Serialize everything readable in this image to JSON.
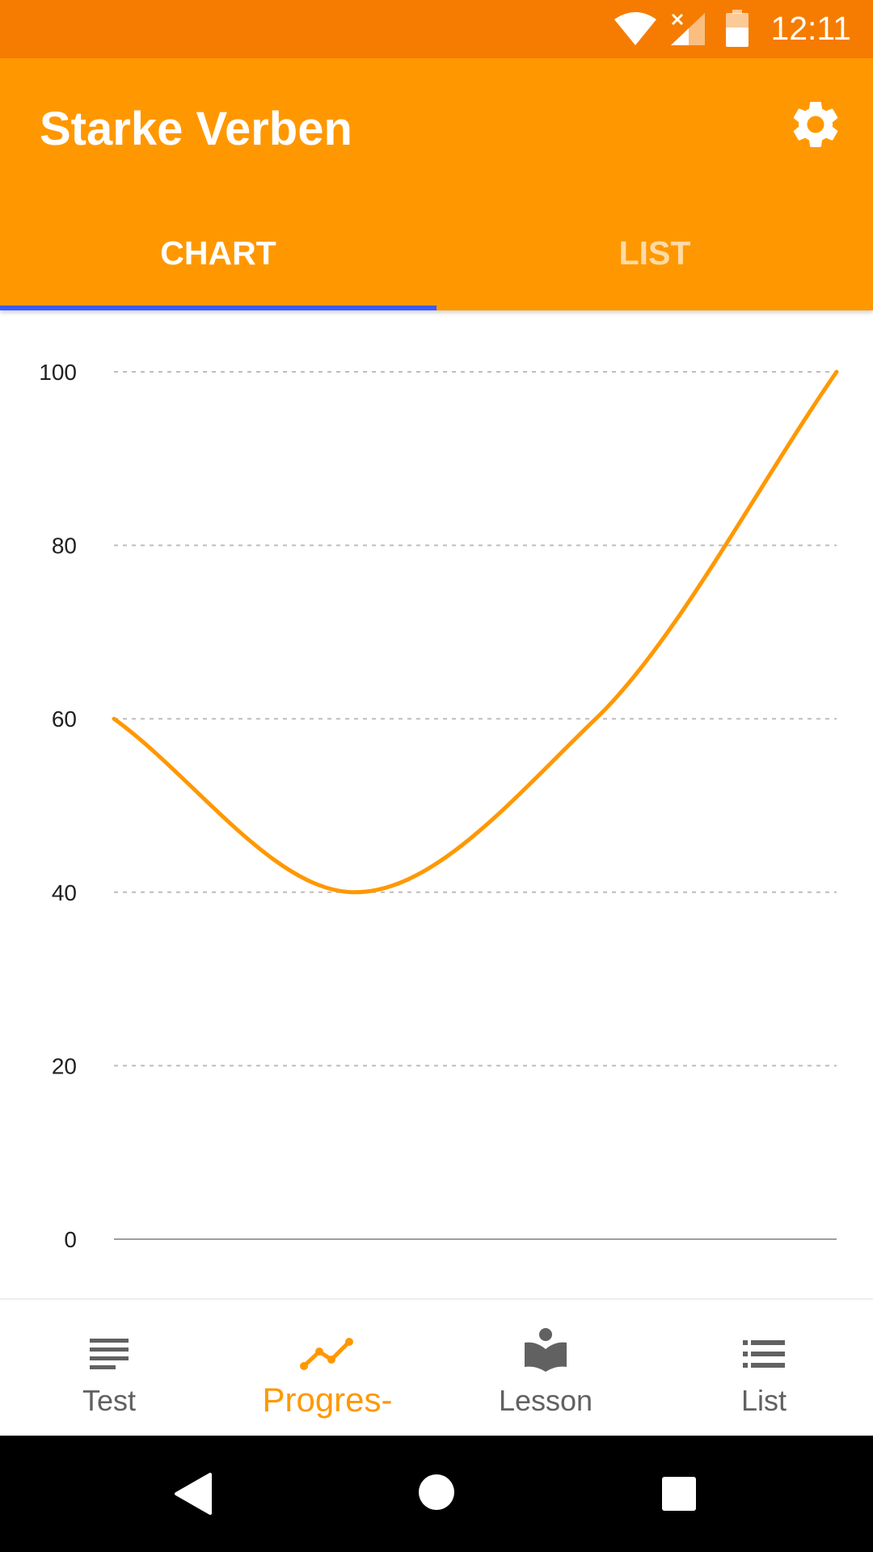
{
  "status_bar": {
    "time": "12:11",
    "icons": [
      "wifi-icon",
      "signal-no-sim-icon",
      "battery-icon"
    ]
  },
  "app_bar": {
    "title": "Starke Verben",
    "settings_icon": "gear-icon"
  },
  "tabs": [
    {
      "label": "CHART",
      "selected": true
    },
    {
      "label": "LIST",
      "selected": false
    }
  ],
  "colors": {
    "status_bar": "#F57C00",
    "primary": "#FF9800",
    "tab_indicator": "#3D5AFE",
    "nav_inactive": "#616161"
  },
  "chart_data": {
    "type": "line",
    "title": "",
    "xlabel": "",
    "ylabel": "",
    "ylim": [
      0,
      100
    ],
    "yticks": [
      0,
      20,
      40,
      60,
      80,
      100
    ],
    "grid": true,
    "series": [
      {
        "values": [
          60,
          40,
          60,
          100
        ]
      }
    ]
  },
  "bottom_nav": [
    {
      "label": "Test",
      "icon": "lines-icon",
      "active": false
    },
    {
      "label": "Progres-",
      "icon": "progress-chart-icon",
      "active": true
    },
    {
      "label": "Lesson",
      "icon": "reading-book-icon",
      "active": false
    },
    {
      "label": "List",
      "icon": "bulleted-list-icon",
      "active": false
    }
  ],
  "system_nav": [
    "back-icon",
    "home-icon",
    "recents-icon"
  ]
}
